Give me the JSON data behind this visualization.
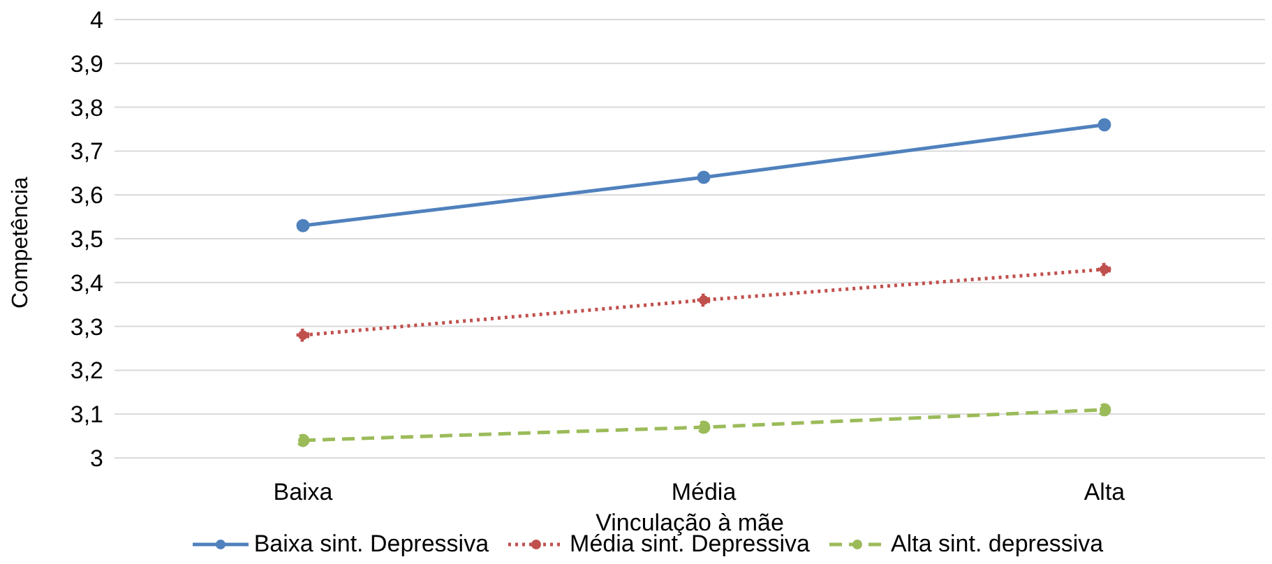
{
  "chart_data": {
    "type": "line",
    "xlabel": "Vinculação à mãe",
    "ylabel": "Competência",
    "categories": [
      "Baixa",
      "Média",
      "Alta"
    ],
    "series": [
      {
        "name": "Baixa sint. Depressiva",
        "color": "#4f81bd",
        "line_style": "solid",
        "values": [
          3.53,
          3.64,
          3.76
        ]
      },
      {
        "name": "Média sint. Depressiva",
        "color": "#c0504d",
        "line_style": "dotted",
        "values": [
          3.28,
          3.36,
          3.43
        ]
      },
      {
        "name": "Alta sint. depressiva",
        "color": "#9bbb59",
        "line_style": "dashed",
        "values": [
          3.04,
          3.07,
          3.11
        ]
      }
    ],
    "ylim": [
      3,
      4
    ],
    "yticks": [
      3,
      {
        "value": 3.1,
        "label": "3,1"
      },
      {
        "value": 3.2,
        "label": "3,2"
      },
      {
        "value": 3.3,
        "label": "3,3"
      },
      {
        "value": 3.4,
        "label": "3,4"
      },
      {
        "value": 3.5,
        "label": "3,5"
      },
      {
        "value": 3.6,
        "label": "3,6"
      },
      {
        "value": 3.7,
        "label": "3,7"
      },
      {
        "value": 3.8,
        "label": "3,8"
      },
      {
        "value": 3.9,
        "label": "3,9"
      },
      4
    ],
    "grid": "y",
    "legend": "bottom",
    "marker": "circle"
  }
}
